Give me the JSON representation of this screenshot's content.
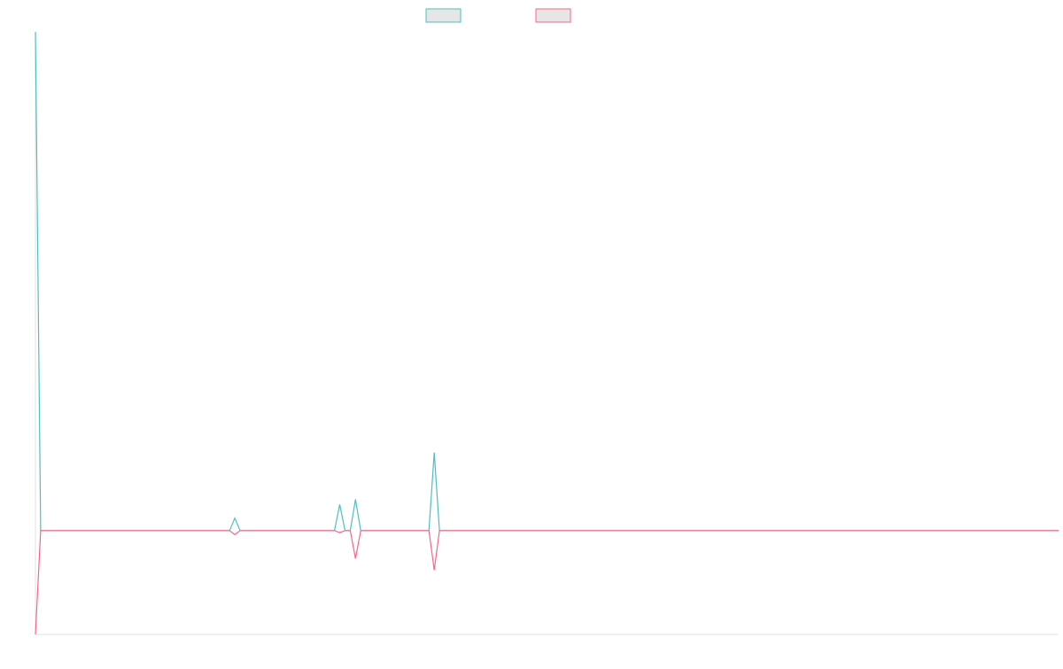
{
  "chart_data": {
    "type": "line",
    "title": "",
    "xlabel": "",
    "ylabel": "",
    "grid": false,
    "legend_position": "top-center",
    "axis_ticks_visible": false,
    "ylim": [
      -100,
      480
    ],
    "x": [
      0,
      1,
      37,
      38,
      39,
      57,
      58,
      59,
      60,
      61,
      62,
      75,
      76,
      77,
      195
    ],
    "series": [
      {
        "color": "#4bc0c0",
        "values": [
          480,
          0,
          0,
          12,
          0,
          0,
          25,
          0,
          0,
          30,
          0,
          0,
          75,
          0,
          0
        ]
      },
      {
        "color": "#ff6384",
        "values": [
          -100,
          0,
          0,
          -4,
          0,
          0,
          -2,
          0,
          0,
          -27,
          0,
          0,
          -38,
          0,
          0
        ]
      }
    ]
  }
}
